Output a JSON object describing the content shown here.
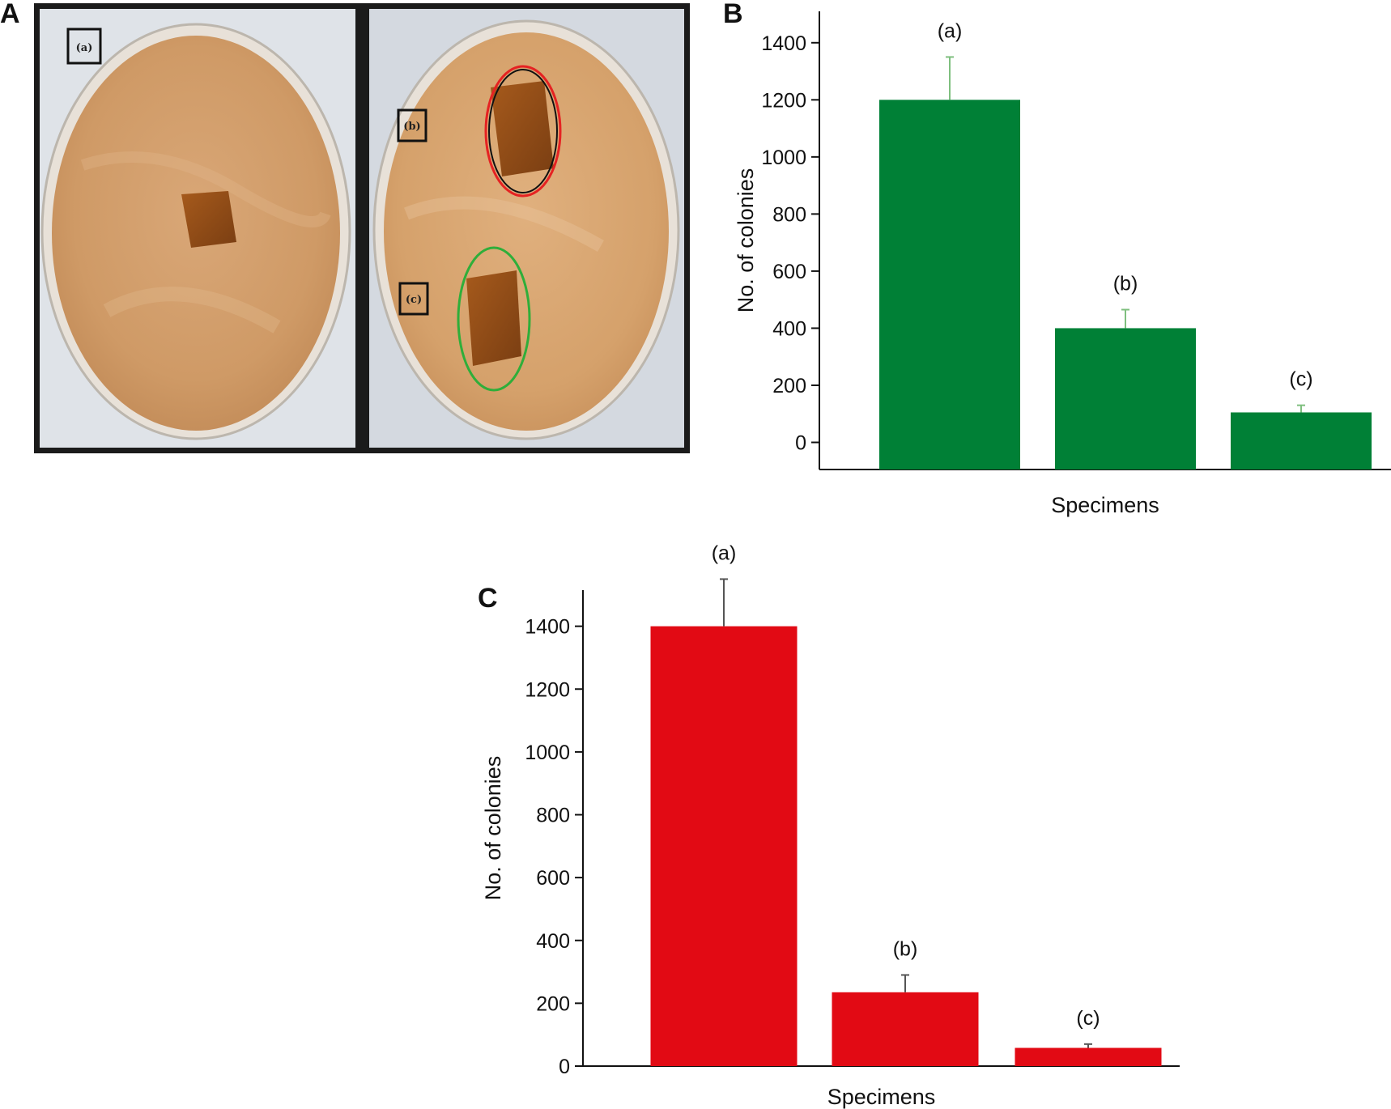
{
  "panels": {
    "a_letter": "A",
    "b_letter": "B",
    "c_letter": "C"
  },
  "photo": {
    "dish1_label": "(a)",
    "dish2_label_top": "(b)",
    "dish2_label_bottom": "(c)"
  },
  "colors": {
    "chart_b_bar": "#008036",
    "chart_b_error": "#7fbf7f",
    "chart_c_bar": "#e20a14",
    "chart_c_error": "#555555"
  },
  "chart_data": [
    {
      "type": "bar",
      "panel": "B",
      "categories": [
        "(a)",
        "(b)",
        "(c)"
      ],
      "values": [
        1200,
        400,
        105
      ],
      "errors": [
        150,
        65,
        25
      ],
      "xlabel": "Specimens",
      "ylabel": "No. of colonies",
      "yticks": [
        0,
        200,
        400,
        600,
        800,
        1000,
        1200,
        1400
      ],
      "ylim": [
        -95,
        1510
      ],
      "grid": false
    },
    {
      "type": "bar",
      "panel": "C",
      "categories": [
        "(a)",
        "(b)",
        "(c)"
      ],
      "values": [
        1400,
        235,
        58
      ],
      "errors": [
        150,
        55,
        12
      ],
      "xlabel": "Specimens",
      "ylabel": "No. of colonies",
      "yticks": [
        0,
        200,
        400,
        600,
        800,
        1000,
        1200,
        1400
      ],
      "ylim": [
        0,
        1515
      ],
      "grid": false
    }
  ]
}
